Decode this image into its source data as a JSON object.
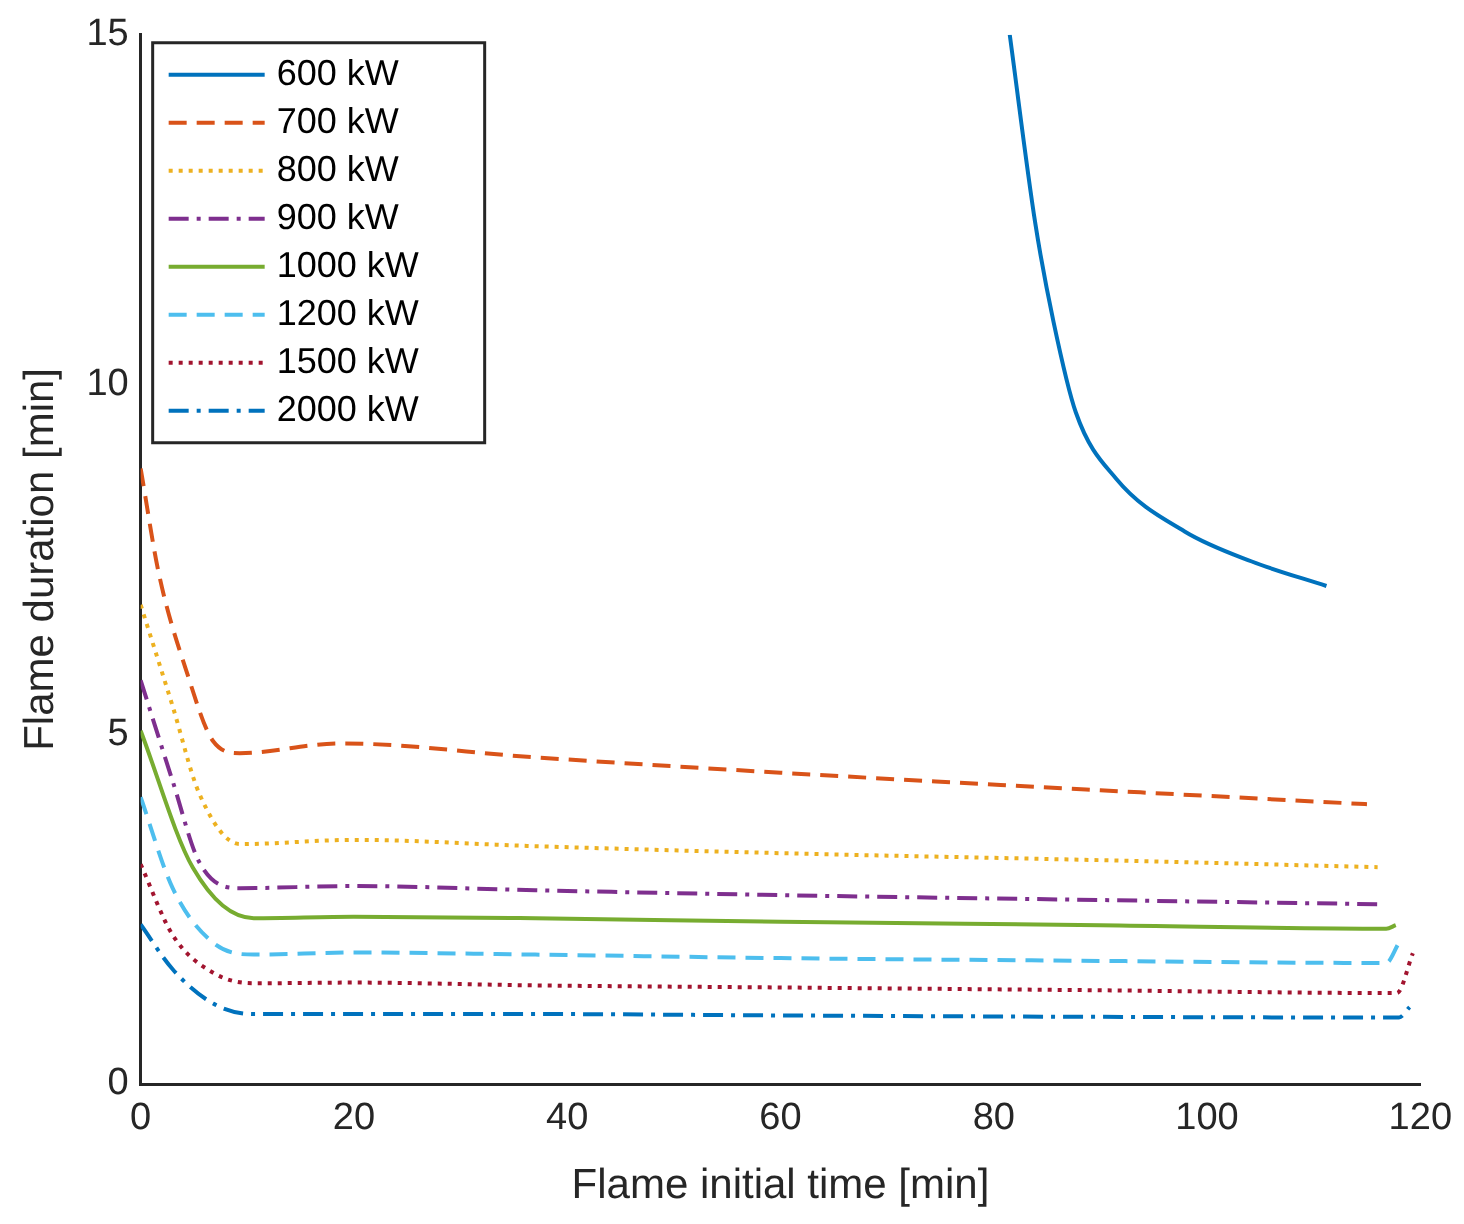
{
  "chart_data": {
    "type": "line",
    "xlabel": "Flame initial time [min]",
    "ylabel": "Flame duration [min]",
    "xlim": [
      0,
      120
    ],
    "xticks": [
      0,
      20,
      40,
      60,
      80,
      100,
      120
    ],
    "ylim": [
      0,
      15
    ],
    "yticks": [
      0,
      5,
      10,
      15
    ],
    "grid": false,
    "legend": "top left",
    "series": [
      {
        "name": "600 kW",
        "color": "#0072bd",
        "line_style": "solid",
        "x": [
          81.5,
          83.9,
          85.6,
          87.7,
          91.5,
          97.9,
          104.2,
          111.2
        ],
        "values": [
          15,
          12.3,
          10.9,
          9.6,
          8.65,
          7.9,
          7.47,
          7.12
        ]
      },
      {
        "name": "700 kW",
        "color": "#d95319",
        "line_style": "dashed",
        "x": [
          0,
          1.7,
          4.3,
          6.8,
          9.3,
          18.7,
          37,
          60,
          90,
          115
        ],
        "values": [
          8.8,
          7.3,
          5.9,
          4.9,
          4.73,
          4.87,
          4.67,
          4.45,
          4.2,
          4.0
        ]
      },
      {
        "name": "800 kW",
        "color": "#edb120",
        "line_style": "dotted",
        "x": [
          0,
          3,
          5.5,
          9.3,
          20,
          37,
          60,
          90,
          116
        ],
        "values": [
          6.85,
          5.4,
          4.15,
          3.43,
          3.49,
          3.4,
          3.3,
          3.2,
          3.1
        ]
      },
      {
        "name": "900 kW",
        "color": "#7e2f8e",
        "line_style": "dashdot",
        "x": [
          0,
          3,
          5.5,
          9.3,
          20,
          37,
          60,
          90,
          116
        ],
        "values": [
          5.77,
          4.33,
          3.17,
          2.8,
          2.83,
          2.77,
          2.7,
          2.63,
          2.57
        ]
      },
      {
        "name": "1000 kW",
        "color": "#77ac30",
        "line_style": "solid",
        "x": [
          0,
          4.9,
          10.6,
          20,
          37,
          60,
          90,
          116.8,
          117.7
        ],
        "values": [
          5.05,
          3.09,
          2.37,
          2.39,
          2.37,
          2.32,
          2.27,
          2.22,
          2.27
        ]
      },
      {
        "name": "1200 kW",
        "color": "#4dbeee",
        "line_style": "dashed",
        "x": [
          0,
          3,
          6.8,
          10.6,
          20,
          37,
          60,
          90,
          116.8,
          118
        ],
        "values": [
          4.1,
          2.8,
          2.02,
          1.85,
          1.88,
          1.85,
          1.8,
          1.76,
          1.73,
          2.02
        ]
      },
      {
        "name": "1500 kW",
        "color": "#a2142f",
        "line_style": "dotted",
        "x": [
          0,
          3,
          6.8,
          10.6,
          20,
          37,
          60,
          90,
          117.8,
          119.3
        ],
        "values": [
          3.14,
          2.13,
          1.59,
          1.44,
          1.45,
          1.41,
          1.38,
          1.34,
          1.3,
          1.87
        ]
      },
      {
        "name": "2000 kW",
        "color": "#0072bd",
        "line_style": "dashdot",
        "x": [
          0,
          3,
          6.8,
          10.6,
          37,
          60,
          90,
          118,
          119
        ],
        "values": [
          2.28,
          1.64,
          1.15,
          1.0,
          1.0,
          0.98,
          0.96,
          0.95,
          1.1
        ]
      }
    ]
  }
}
